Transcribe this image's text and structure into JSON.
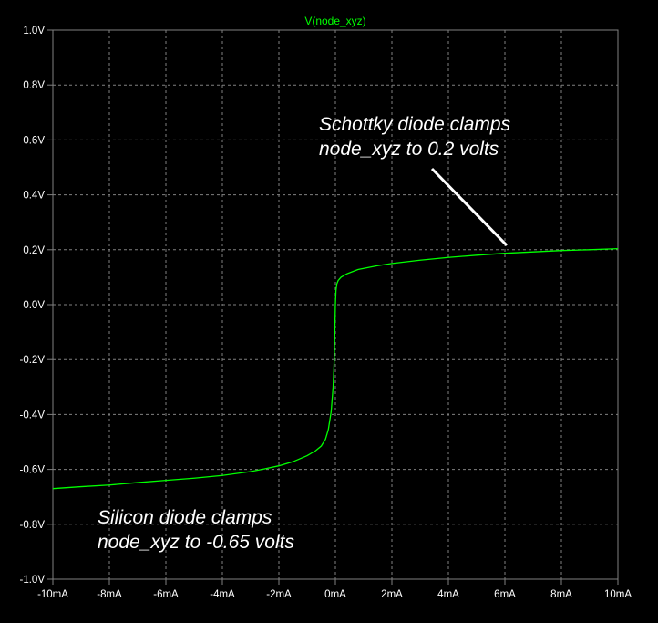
{
  "chart_data": {
    "type": "line",
    "title": "V(node_xyz)",
    "xlabel": "",
    "ylabel": "",
    "xlim": [
      -10,
      10
    ],
    "ylim": [
      -1.0,
      1.0
    ],
    "grid": true,
    "x_ticks": [
      -10,
      -8,
      -6,
      -4,
      -2,
      0,
      2,
      4,
      6,
      8,
      10
    ],
    "x_tick_labels": [
      "-10mA",
      "-8mA",
      "-6mA",
      "-4mA",
      "-2mA",
      "0mA",
      "2mA",
      "4mA",
      "6mA",
      "8mA",
      "10mA"
    ],
    "y_ticks": [
      1.0,
      0.8,
      0.6,
      0.4,
      0.2,
      0.0,
      -0.2,
      -0.4,
      -0.6,
      -0.8,
      -1.0
    ],
    "y_tick_labels": [
      "1.0V",
      "0.8V",
      "0.6V",
      "0.4V",
      "0.2V",
      "0.0V",
      "-0.2V",
      "-0.4V",
      "-0.6V",
      "-0.8V",
      "-1.0V"
    ],
    "series": [
      {
        "color": "#00ff00",
        "x": [
          -10,
          -9,
          -8,
          -7,
          -6,
          -5,
          -4,
          -3,
          -2.5,
          -2,
          -1.5,
          -1,
          -0.7,
          -0.5,
          -0.35,
          -0.25,
          -0.15,
          -0.08,
          -0.04,
          -0.02,
          0,
          0.02,
          0.05,
          0.1,
          0.2,
          0.4,
          0.8,
          1.5,
          2,
          3,
          4,
          5,
          6,
          7,
          8,
          9,
          10
        ],
        "y": [
          -0.67,
          -0.663,
          -0.657,
          -0.648,
          -0.64,
          -0.632,
          -0.622,
          -0.608,
          -0.598,
          -0.587,
          -0.572,
          -0.55,
          -0.532,
          -0.515,
          -0.49,
          -0.455,
          -0.39,
          -0.3,
          -0.2,
          -0.1,
          0.0,
          0.05,
          0.075,
          0.088,
          0.1,
          0.112,
          0.128,
          0.142,
          0.15,
          0.162,
          0.172,
          0.18,
          0.187,
          0.192,
          0.197,
          0.2,
          0.204
        ]
      }
    ],
    "annotations": [
      {
        "lines": [
          "Schottky diode clamps",
          "node_xyz to 0.2 volts"
        ],
        "arrow_to": [
          6.2,
          0.21
        ]
      },
      {
        "lines": [
          "Silicon diode clamps",
          "node_xyz to -0.65 volts"
        ]
      }
    ],
    "colors": {
      "background": "#000000",
      "axis": "#808080",
      "grid": "#808080",
      "trace": "#00ff00",
      "text": "#ffffff"
    }
  }
}
